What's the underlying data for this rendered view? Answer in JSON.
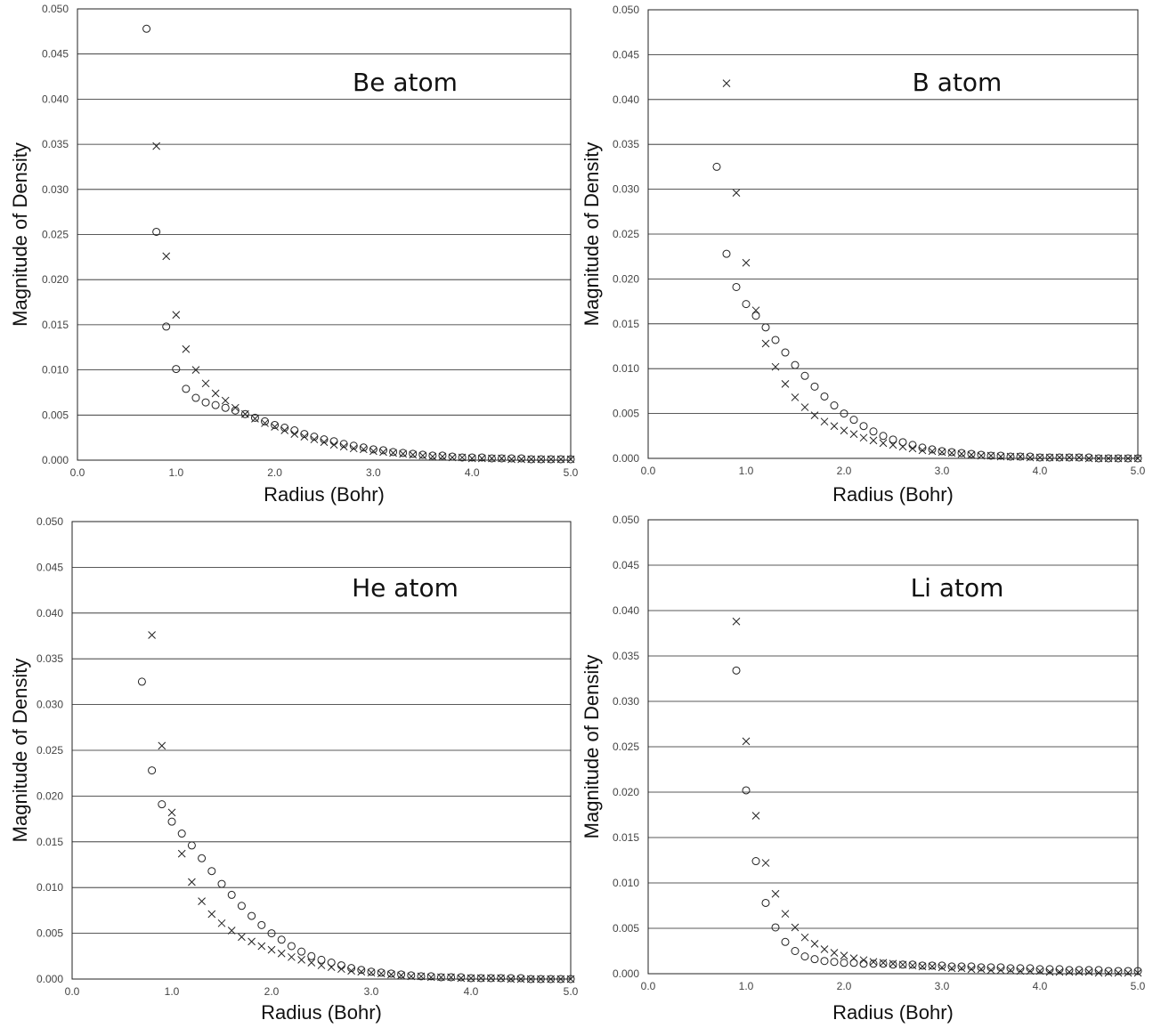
{
  "chart_data": [
    {
      "type": "scatter",
      "title": "Be atom",
      "xlabel": "Radius (Bohr)",
      "ylabel": "Magnitude of Density",
      "xlim": [
        0,
        5
      ],
      "ylim": [
        0,
        0.05
      ],
      "x_ticks": [
        "0.0",
        "1.0",
        "2.0",
        "3.0",
        "4.0",
        "5.0"
      ],
      "y_ticks": [
        "0.000",
        "0.005",
        "0.010",
        "0.015",
        "0.020",
        "0.025",
        "0.030",
        "0.035",
        "0.040",
        "0.045",
        "0.050"
      ],
      "grid": "horizontal",
      "series": [
        {
          "marker": "circle",
          "x": [
            0.7,
            0.8,
            0.9,
            1.0,
            1.1,
            1.2,
            1.3,
            1.4,
            1.5,
            1.6,
            1.7,
            1.8,
            1.9,
            2.0,
            2.1,
            2.2,
            2.3,
            2.4,
            2.5,
            2.6,
            2.7,
            2.8,
            2.9,
            3.0,
            3.1,
            3.2,
            3.3,
            3.4,
            3.5,
            3.6,
            3.7,
            3.8,
            3.9,
            4.0,
            4.1,
            4.2,
            4.3,
            4.4,
            4.5,
            4.6,
            4.7,
            4.8,
            4.9,
            5.0
          ],
          "y": [
            0.0478,
            0.0253,
            0.0148,
            0.0101,
            0.0079,
            0.0069,
            0.0064,
            0.0061,
            0.0058,
            0.0055,
            0.0051,
            0.0047,
            0.0043,
            0.0039,
            0.0036,
            0.0033,
            0.0029,
            0.0026,
            0.0023,
            0.0021,
            0.0018,
            0.0016,
            0.0014,
            0.0012,
            0.0011,
            0.0009,
            0.0008,
            0.0007,
            0.0006,
            0.0005,
            0.0005,
            0.0004,
            0.0003,
            0.0003,
            0.0003,
            0.0002,
            0.0002,
            0.0002,
            0.0002,
            0.0001,
            0.0001,
            0.0001,
            0.0001,
            0.0001
          ]
        },
        {
          "marker": "cross",
          "x": [
            0.8,
            0.9,
            1.0,
            1.1,
            1.2,
            1.3,
            1.4,
            1.5,
            1.6,
            1.7,
            1.8,
            1.9,
            2.0,
            2.1,
            2.2,
            2.3,
            2.4,
            2.5,
            2.6,
            2.7,
            2.8,
            2.9,
            3.0,
            3.1,
            3.2,
            3.3,
            3.4,
            3.5,
            3.6,
            3.7,
            3.8,
            3.9,
            4.0,
            4.1,
            4.2,
            4.3,
            4.4,
            4.5,
            4.6,
            4.7,
            4.8,
            4.9,
            5.0
          ],
          "y": [
            0.0348,
            0.0226,
            0.0161,
            0.0123,
            0.01,
            0.0085,
            0.0074,
            0.0066,
            0.0058,
            0.0051,
            0.0046,
            0.0041,
            0.0037,
            0.0033,
            0.0029,
            0.0026,
            0.0023,
            0.002,
            0.0017,
            0.0015,
            0.0013,
            0.0012,
            0.001,
            0.0009,
            0.0008,
            0.0007,
            0.0006,
            0.0005,
            0.0004,
            0.0004,
            0.0003,
            0.0003,
            0.0002,
            0.0002,
            0.0002,
            0.0002,
            0.0001,
            0.0001,
            0.0001,
            0.0001,
            0.0001,
            0.0001,
            0.0001
          ]
        }
      ]
    },
    {
      "type": "scatter",
      "title": "B atom",
      "xlabel": "Radius (Bohr)",
      "ylabel": "Magnitude of Density",
      "xlim": [
        0,
        5
      ],
      "ylim": [
        0,
        0.05
      ],
      "x_ticks": [
        "0.0",
        "1.0",
        "2.0",
        "3.0",
        "4.0",
        "5.0"
      ],
      "y_ticks": [
        "0.000",
        "0.005",
        "0.010",
        "0.015",
        "0.020",
        "0.025",
        "0.030",
        "0.035",
        "0.040",
        "0.045",
        "0.050"
      ],
      "grid": "horizontal",
      "series": [
        {
          "marker": "circle",
          "x": [
            0.7,
            0.8,
            0.9,
            1.0,
            1.1,
            1.2,
            1.3,
            1.4,
            1.5,
            1.6,
            1.7,
            1.8,
            1.9,
            2.0,
            2.1,
            2.2,
            2.3,
            2.4,
            2.5,
            2.6,
            2.7,
            2.8,
            2.9,
            3.0,
            3.1,
            3.2,
            3.3,
            3.4,
            3.5,
            3.6,
            3.7,
            3.8,
            3.9,
            4.0,
            4.1,
            4.2,
            4.3,
            4.4,
            4.5,
            4.6,
            4.7,
            4.8,
            4.9,
            5.0
          ],
          "y": [
            0.0325,
            0.0228,
            0.0191,
            0.0172,
            0.0159,
            0.0146,
            0.0132,
            0.0118,
            0.0104,
            0.0092,
            0.008,
            0.0069,
            0.0059,
            0.005,
            0.0043,
            0.0036,
            0.003,
            0.0025,
            0.0021,
            0.0018,
            0.0015,
            0.0012,
            0.001,
            0.0008,
            0.0007,
            0.0006,
            0.0005,
            0.0004,
            0.0003,
            0.0003,
            0.0002,
            0.0002,
            0.0002,
            0.0001,
            0.0001,
            0.0001,
            0.0001,
            0.0001,
            0.0001,
            0.0,
            0.0,
            0.0,
            0.0,
            0.0
          ]
        },
        {
          "marker": "cross",
          "x": [
            0.8,
            0.9,
            1.0,
            1.1,
            1.2,
            1.3,
            1.4,
            1.5,
            1.6,
            1.7,
            1.8,
            1.9,
            2.0,
            2.1,
            2.2,
            2.3,
            2.4,
            2.5,
            2.6,
            2.7,
            2.8,
            2.9,
            3.0,
            3.1,
            3.2,
            3.3,
            3.4,
            3.5,
            3.6,
            3.7,
            3.8,
            3.9,
            4.0,
            4.1,
            4.2,
            4.3,
            4.4,
            4.5,
            4.6,
            4.7,
            4.8,
            4.9,
            5.0
          ],
          "y": [
            0.0418,
            0.0296,
            0.0218,
            0.0165,
            0.0128,
            0.0102,
            0.0083,
            0.0068,
            0.0057,
            0.0048,
            0.0041,
            0.0036,
            0.0031,
            0.0027,
            0.0023,
            0.002,
            0.0017,
            0.0015,
            0.0013,
            0.0011,
            0.0009,
            0.0008,
            0.0007,
            0.0006,
            0.0005,
            0.0004,
            0.0003,
            0.0003,
            0.0002,
            0.0002,
            0.0002,
            0.0001,
            0.0001,
            0.0001,
            0.0001,
            0.0001,
            0.0001,
            0.0,
            0.0,
            0.0,
            0.0,
            0.0,
            0.0
          ]
        }
      ]
    },
    {
      "type": "scatter",
      "title": "He atom",
      "xlabel": "Radius (Bohr)",
      "ylabel": "Magnitude of Density",
      "xlim": [
        0,
        5
      ],
      "ylim": [
        0,
        0.05
      ],
      "x_ticks": [
        "0.0",
        "1.0",
        "2.0",
        "3.0",
        "4.0",
        "5.0"
      ],
      "y_ticks": [
        "0.000",
        "0.005",
        "0.010",
        "0.015",
        "0.020",
        "0.025",
        "0.030",
        "0.035",
        "0.040",
        "0.045",
        "0.050"
      ],
      "grid": "horizontal",
      "series": [
        {
          "marker": "circle",
          "x": [
            0.7,
            0.8,
            0.9,
            1.0,
            1.1,
            1.2,
            1.3,
            1.4,
            1.5,
            1.6,
            1.7,
            1.8,
            1.9,
            2.0,
            2.1,
            2.2,
            2.3,
            2.4,
            2.5,
            2.6,
            2.7,
            2.8,
            2.9,
            3.0,
            3.1,
            3.2,
            3.3,
            3.4,
            3.5,
            3.6,
            3.7,
            3.8,
            3.9,
            4.0,
            4.1,
            4.2,
            4.3,
            4.4,
            4.5,
            4.6,
            4.7,
            4.8,
            4.9,
            5.0
          ],
          "y": [
            0.0325,
            0.0228,
            0.0191,
            0.0172,
            0.0159,
            0.0146,
            0.0132,
            0.0118,
            0.0104,
            0.0092,
            0.008,
            0.0069,
            0.0059,
            0.005,
            0.0043,
            0.0036,
            0.003,
            0.0025,
            0.0021,
            0.0018,
            0.0015,
            0.0012,
            0.001,
            0.0008,
            0.0007,
            0.0006,
            0.0005,
            0.0004,
            0.0003,
            0.0003,
            0.0002,
            0.0002,
            0.0002,
            0.0001,
            0.0001,
            0.0001,
            0.0001,
            0.0001,
            0.0001,
            0.0,
            0.0,
            0.0,
            0.0,
            0.0
          ]
        },
        {
          "marker": "cross",
          "x": [
            0.8,
            0.9,
            1.0,
            1.1,
            1.2,
            1.3,
            1.4,
            1.5,
            1.6,
            1.7,
            1.8,
            1.9,
            2.0,
            2.1,
            2.2,
            2.3,
            2.4,
            2.5,
            2.6,
            2.7,
            2.8,
            2.9,
            3.0,
            3.1,
            3.2,
            3.3,
            3.4,
            3.5,
            3.6,
            3.7,
            3.8,
            3.9,
            4.0,
            4.1,
            4.2,
            4.3,
            4.4,
            4.5,
            4.6,
            4.7,
            4.8,
            4.9,
            5.0
          ],
          "y": [
            0.0376,
            0.0255,
            0.0182,
            0.0137,
            0.0106,
            0.0085,
            0.0071,
            0.0061,
            0.0053,
            0.0046,
            0.0041,
            0.0036,
            0.0032,
            0.0028,
            0.0024,
            0.0021,
            0.0018,
            0.0015,
            0.0013,
            0.0011,
            0.0009,
            0.0008,
            0.0007,
            0.0006,
            0.0005,
            0.0004,
            0.0003,
            0.0003,
            0.0002,
            0.0002,
            0.0002,
            0.0001,
            0.0001,
            0.0001,
            0.0001,
            0.0001,
            0.0,
            0.0,
            0.0,
            0.0,
            0.0,
            0.0,
            0.0
          ]
        }
      ]
    },
    {
      "type": "scatter",
      "title": "Li atom",
      "xlabel": "Radius (Bohr)",
      "ylabel": "Magnitude of Density",
      "xlim": [
        0,
        5
      ],
      "ylim": [
        0,
        0.05
      ],
      "x_ticks": [
        "0.0",
        "1.0",
        "2.0",
        "3.0",
        "4.0",
        "5.0"
      ],
      "y_ticks": [
        "0.000",
        "0.005",
        "0.010",
        "0.015",
        "0.020",
        "0.025",
        "0.030",
        "0.035",
        "0.040",
        "0.045",
        "0.050"
      ],
      "grid": "horizontal",
      "series": [
        {
          "marker": "circle",
          "x": [
            0.9,
            1.0,
            1.1,
            1.2,
            1.3,
            1.4,
            1.5,
            1.6,
            1.7,
            1.8,
            1.9,
            2.0,
            2.1,
            2.2,
            2.3,
            2.4,
            2.5,
            2.6,
            2.7,
            2.8,
            2.9,
            3.0,
            3.1,
            3.2,
            3.3,
            3.4,
            3.5,
            3.6,
            3.7,
            3.8,
            3.9,
            4.0,
            4.1,
            4.2,
            4.3,
            4.4,
            4.5,
            4.6,
            4.7,
            4.8,
            4.9,
            5.0
          ],
          "y": [
            0.0334,
            0.0202,
            0.0124,
            0.0078,
            0.0051,
            0.0035,
            0.0025,
            0.0019,
            0.0016,
            0.0014,
            0.0013,
            0.0012,
            0.0012,
            0.0011,
            0.0011,
            0.0011,
            0.001,
            0.001,
            0.001,
            0.0009,
            0.0009,
            0.0009,
            0.0008,
            0.0008,
            0.0008,
            0.0007,
            0.0007,
            0.0007,
            0.0006,
            0.0006,
            0.0006,
            0.0005,
            0.0005,
            0.0005,
            0.0004,
            0.0004,
            0.0004,
            0.0004,
            0.0003,
            0.0003,
            0.0003,
            0.0003
          ]
        },
        {
          "marker": "cross",
          "x": [
            0.9,
            1.0,
            1.1,
            1.2,
            1.3,
            1.4,
            1.5,
            1.6,
            1.7,
            1.8,
            1.9,
            2.0,
            2.1,
            2.2,
            2.3,
            2.4,
            2.5,
            2.6,
            2.7,
            2.8,
            2.9,
            3.0,
            3.1,
            3.2,
            3.3,
            3.4,
            3.5,
            3.6,
            3.7,
            3.8,
            3.9,
            4.0,
            4.1,
            4.2,
            4.3,
            4.4,
            4.5,
            4.6,
            4.7,
            4.8,
            4.9,
            5.0
          ],
          "y": [
            0.0388,
            0.0256,
            0.0174,
            0.0122,
            0.0088,
            0.0066,
            0.0051,
            0.004,
            0.0033,
            0.0027,
            0.0023,
            0.002,
            0.0017,
            0.0015,
            0.0013,
            0.0012,
            0.0011,
            0.001,
            0.0009,
            0.0008,
            0.0008,
            0.0007,
            0.0006,
            0.0006,
            0.0005,
            0.0005,
            0.0004,
            0.0004,
            0.0004,
            0.0003,
            0.0003,
            0.0003,
            0.0002,
            0.0002,
            0.0002,
            0.0002,
            0.0002,
            0.0001,
            0.0001,
            0.0001,
            0.0001,
            0.0001
          ]
        }
      ]
    }
  ]
}
